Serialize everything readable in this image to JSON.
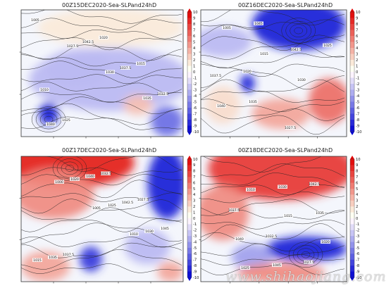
{
  "chart_data": [
    {
      "type": "heatmap",
      "title": "00Z15DEC2020-Sea-SLPand24hD",
      "colorbar": {
        "min": -10,
        "max": 10,
        "ticks": [
          10,
          9,
          8,
          7,
          6,
          5,
          4,
          3,
          2,
          1,
          0,
          -1,
          -2,
          -3,
          -4,
          -5,
          -6,
          -7,
          -8,
          -9,
          -10
        ]
      },
      "field_blobs": [
        {
          "id": "weak-positive-north",
          "value": 1.5,
          "cx": 0.55,
          "cy": 0.14,
          "rx": 0.45,
          "ry": 0.15
        },
        {
          "id": "negative-northwest",
          "value": -2,
          "cx": 0.35,
          "cy": 0.45,
          "rx": 0.2,
          "ry": 0.15
        },
        {
          "id": "negative-center",
          "value": -3,
          "cx": 0.55,
          "cy": 0.55,
          "rx": 0.5,
          "ry": 0.25
        },
        {
          "id": "negative-southwest-core",
          "value": -9,
          "cx": 0.17,
          "cy": 0.82,
          "rx": 0.06,
          "ry": 0.09
        },
        {
          "id": "negative-southeast",
          "value": -6,
          "cx": 0.9,
          "cy": 0.88,
          "rx": 0.1,
          "ry": 0.12
        },
        {
          "id": "positive-southeast",
          "value": 3,
          "cx": 0.72,
          "cy": 0.75,
          "rx": 0.09,
          "ry": 0.08
        }
      ],
      "isobar_labels": [
        "1005",
        "1027.5",
        "1030",
        "1035",
        "1040",
        "1042.5",
        "1037.5",
        "1032.5",
        "1025",
        "1020",
        "1015",
        "1010"
      ]
    },
    {
      "type": "heatmap",
      "title": "00Z16DEC2020-Sea-SLPand24hD",
      "colorbar": {
        "min": -10,
        "max": 10,
        "ticks": [
          10,
          9,
          8,
          7,
          6,
          5,
          4,
          3,
          2,
          1,
          0,
          -1,
          -2,
          -3,
          -4,
          -5,
          -6,
          -7,
          -8,
          -9,
          -10
        ]
      },
      "field_blobs": [
        {
          "id": "strong-negative-north",
          "value": -9,
          "cx": 0.67,
          "cy": 0.12,
          "rx": 0.32,
          "ry": 0.2
        },
        {
          "id": "negative-northwest",
          "value": -3,
          "cx": 0.15,
          "cy": 0.25,
          "rx": 0.2,
          "ry": 0.12
        },
        {
          "id": "negative-southwest-core",
          "value": -9,
          "cx": 0.32,
          "cy": 0.58,
          "rx": 0.05,
          "ry": 0.07
        },
        {
          "id": "positive-southeast",
          "value": 6,
          "cx": 0.88,
          "cy": 0.72,
          "rx": 0.14,
          "ry": 0.18
        },
        {
          "id": "positive-south-center",
          "value": 4,
          "cx": 0.55,
          "cy": 0.82,
          "rx": 0.2,
          "ry": 0.12
        },
        {
          "id": "positive-west",
          "value": 2,
          "cx": 0.15,
          "cy": 0.75,
          "rx": 0.12,
          "ry": 0.15
        }
      ],
      "isobar_labels": [
        "1005",
        "1015",
        "1030",
        "1040",
        "1045",
        "1042.5",
        "1037.5",
        "1035",
        "1027.5",
        "1025",
        "1020"
      ]
    },
    {
      "type": "heatmap",
      "title": "00Z17DEC2020-Sea-SLPand24hD",
      "colorbar": {
        "min": -10,
        "max": 10,
        "ticks": [
          10,
          9,
          8,
          7,
          6,
          5,
          4,
          3,
          2,
          1,
          0,
          -1,
          -2,
          -3,
          -4,
          -5,
          -6,
          -7,
          -8,
          -9,
          -10
        ]
      },
      "field_blobs": [
        {
          "id": "strong-positive-northwest",
          "value": 9,
          "cx": 0.3,
          "cy": 0.05,
          "rx": 0.4,
          "ry": 0.2
        },
        {
          "id": "positive-west",
          "value": 5,
          "cx": 0.2,
          "cy": 0.3,
          "rx": 0.25,
          "ry": 0.2
        },
        {
          "id": "strong-negative-northeast",
          "value": -9,
          "cx": 0.9,
          "cy": 0.22,
          "rx": 0.12,
          "ry": 0.28
        },
        {
          "id": "negative-south-center",
          "value": -8,
          "cx": 0.43,
          "cy": 0.82,
          "rx": 0.07,
          "ry": 0.1
        },
        {
          "id": "negative-east",
          "value": -3,
          "cx": 0.78,
          "cy": 0.72,
          "rx": 0.14,
          "ry": 0.14
        },
        {
          "id": "positive-southwest",
          "value": 4,
          "cx": 0.15,
          "cy": 0.88,
          "rx": 0.15,
          "ry": 0.12
        },
        {
          "id": "positive-southeast",
          "value": 4,
          "cx": 0.92,
          "cy": 0.92,
          "rx": 0.08,
          "ry": 0.08
        }
      ],
      "isobar_labels": [
        "1000",
        "1005",
        "1010",
        "1015",
        "1020",
        "1025",
        "1030",
        "1035",
        "1040",
        "1042.5",
        "1045",
        "1037.5",
        "1032.5",
        "1027.5"
      ]
    },
    {
      "type": "heatmap",
      "title": "00Z18DEC2020-Sea-SLPand24hD",
      "colorbar": {
        "min": -10,
        "max": 10,
        "ticks": [
          10,
          9,
          8,
          7,
          6,
          5,
          4,
          3,
          2,
          1,
          0,
          -1,
          -2,
          -3,
          -4,
          -5,
          -6,
          -7,
          -8,
          -9,
          -10
        ]
      },
      "field_blobs": [
        {
          "id": "strong-positive-north",
          "value": 8,
          "cx": 0.55,
          "cy": 0.1,
          "rx": 0.5,
          "ry": 0.25
        },
        {
          "id": "positive-west",
          "value": 5,
          "cx": 0.15,
          "cy": 0.45,
          "rx": 0.18,
          "ry": 0.22
        },
        {
          "id": "strong-negative-southeast",
          "value": -9,
          "cx": 0.72,
          "cy": 0.74,
          "rx": 0.28,
          "ry": 0.1
        },
        {
          "id": "negative-southwest",
          "value": -4,
          "cx": 0.35,
          "cy": 0.8,
          "rx": 0.14,
          "ry": 0.1
        },
        {
          "id": "positive-south",
          "value": 5,
          "cx": 0.55,
          "cy": 0.93,
          "rx": 0.3,
          "ry": 0.08
        }
      ],
      "isobar_labels": [
        "1010",
        "1015",
        "1020",
        "1025",
        "1030",
        "1035",
        "1040",
        "1045",
        "1042.5",
        "1037.5",
        "1032.5",
        "1027.5"
      ]
    }
  ],
  "watermark": "www.shihaojiang.com"
}
